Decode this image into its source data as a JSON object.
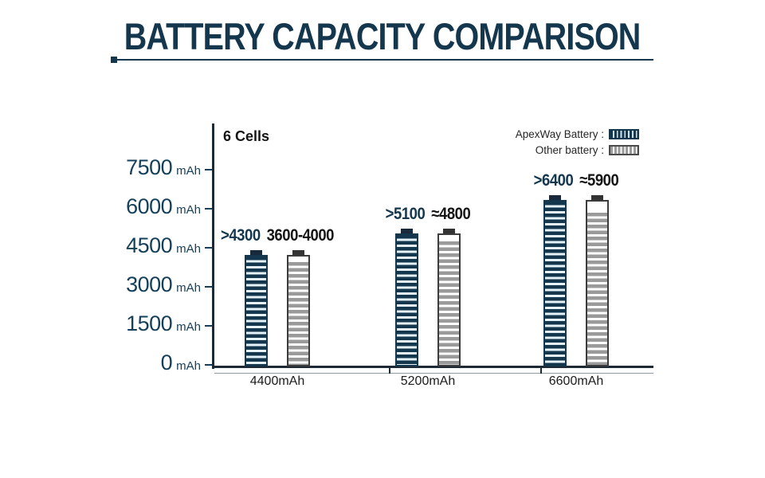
{
  "title": "BATTERY CAPACITY COMPARISON",
  "colors": {
    "navy": "#14374e",
    "light_stripe": "#e6f3f8",
    "gray_stripe": "#9a9a9a",
    "axis": "#1d2a35",
    "black_text": "#141414"
  },
  "chart_data": {
    "type": "bar",
    "title": "BATTERY CAPACITY COMPARISON",
    "note": "6 Cells",
    "categories": [
      "4400mAh",
      "5200mAh",
      "6600mAh"
    ],
    "y_axis": {
      "ticks": [
        7500,
        6000,
        4500,
        3000,
        1500,
        0
      ],
      "tick_unit": "mAh",
      "min": 0,
      "max": 7500,
      "grid": false
    },
    "series": [
      {
        "name": "ApexWay Battery",
        "values": [
          4300,
          5100,
          6400
        ],
        "value_labels": [
          ">4300",
          ">5100",
          ">6400"
        ]
      },
      {
        "name": "Other battery",
        "values": [
          4000,
          4800,
          5900
        ],
        "outline_values": [
          4300,
          5100,
          6400
        ],
        "value_labels": [
          "3600-4000",
          "≈4800",
          "≈5900"
        ]
      }
    ],
    "legend": {
      "position": "top-right",
      "entries": [
        "ApexWay Battery :",
        "Other battery :"
      ]
    }
  }
}
